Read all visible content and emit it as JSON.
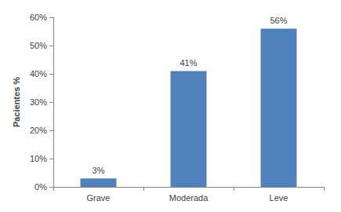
{
  "chart_data": {
    "type": "bar",
    "y_label": "Pacientes %",
    "categories": [
      "Grave",
      "Moderada",
      "Leve"
    ],
    "values": [
      3,
      41,
      56
    ],
    "value_labels": [
      "3%",
      "41%",
      "56%"
    ],
    "color": "#4f81bd",
    "ylim": [
      0,
      60
    ],
    "yticks": [
      {
        "value": 0,
        "label": "0%"
      },
      {
        "value": 10,
        "label": "10%"
      },
      {
        "value": 20,
        "label": "20%"
      },
      {
        "value": 30,
        "label": "30%"
      },
      {
        "value": 40,
        "label": "40%"
      },
      {
        "value": 50,
        "label": "50%"
      },
      {
        "value": 60,
        "label": "60%"
      }
    ],
    "grid": false,
    "data_labels": true
  }
}
